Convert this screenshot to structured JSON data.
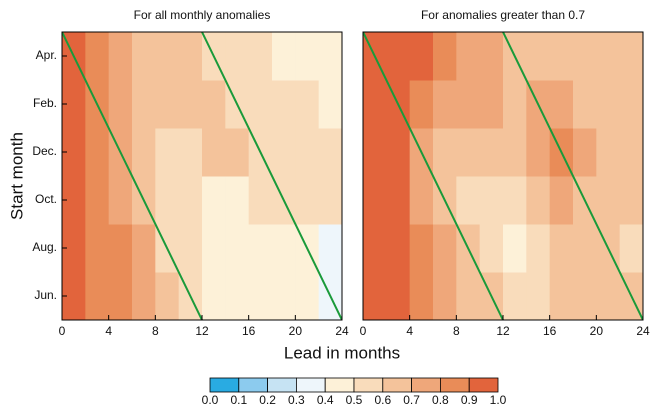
{
  "chart_data": [
    {
      "type": "heatmap",
      "title": "For all monthly anomalies",
      "xlabel": "Lead in months",
      "ylabel": "Start month",
      "x": [
        1,
        3,
        5,
        7,
        9,
        11,
        13,
        15,
        17,
        19,
        21,
        23
      ],
      "y": [
        1,
        3,
        5,
        7,
        9,
        11
      ],
      "values": [
        [
          0.95,
          0.85,
          0.8,
          0.75,
          0.65,
          0.55,
          0.45,
          0.45,
          0.45,
          0.45,
          0.45,
          0.35
        ],
        [
          0.95,
          0.85,
          0.8,
          0.7,
          0.55,
          0.5,
          0.45,
          0.45,
          0.45,
          0.45,
          0.45,
          0.35
        ],
        [
          0.95,
          0.85,
          0.75,
          0.65,
          0.55,
          0.5,
          0.45,
          0.45,
          0.5,
          0.55,
          0.55,
          0.5
        ],
        [
          0.95,
          0.85,
          0.75,
          0.65,
          0.55,
          0.55,
          0.6,
          0.6,
          0.55,
          0.55,
          0.5,
          0.5
        ],
        [
          0.95,
          0.85,
          0.75,
          0.65,
          0.65,
          0.6,
          0.6,
          0.55,
          0.55,
          0.5,
          0.5,
          0.45
        ],
        [
          0.95,
          0.85,
          0.75,
          0.65,
          0.65,
          0.6,
          0.55,
          0.55,
          0.5,
          0.45,
          0.45,
          0.45
        ]
      ],
      "xlim": [
        0,
        24
      ],
      "xticks": [
        0,
        4,
        8,
        12,
        16,
        20,
        24
      ],
      "ylim": [
        0,
        12
      ],
      "yticks": [
        {
          "value": 1,
          "label": "Jun."
        },
        {
          "value": 3,
          "label": "Aug."
        },
        {
          "value": 5,
          "label": "Oct."
        },
        {
          "value": 7,
          "label": "Dec."
        },
        {
          "value": 9,
          "label": "Feb."
        },
        {
          "value": 11,
          "label": "Apr."
        }
      ],
      "lines": [
        {
          "x": [
            0,
            12
          ],
          "y": [
            12,
            0
          ],
          "color": "#1a9a3a"
        },
        {
          "x": [
            12,
            24
          ],
          "y": [
            12,
            0
          ],
          "color": "#1a9a3a"
        }
      ]
    },
    {
      "type": "heatmap",
      "title": "For anomalies greater than 0.7",
      "x": [
        1,
        3,
        5,
        7,
        9,
        11,
        13,
        15,
        17,
        19,
        21,
        23
      ],
      "y": [
        1,
        3,
        5,
        7,
        9,
        11
      ],
      "values": [
        [
          0.95,
          0.95,
          0.85,
          0.75,
          0.65,
          0.6,
          0.55,
          0.55,
          0.6,
          0.6,
          0.65,
          0.6
        ],
        [
          0.95,
          0.95,
          0.8,
          0.7,
          0.6,
          0.5,
          0.45,
          0.55,
          0.6,
          0.65,
          0.6,
          0.55
        ],
        [
          0.95,
          0.9,
          0.75,
          0.65,
          0.55,
          0.5,
          0.55,
          0.6,
          0.7,
          0.65,
          0.6,
          0.6
        ],
        [
          0.95,
          0.9,
          0.75,
          0.65,
          0.6,
          0.6,
          0.65,
          0.75,
          0.85,
          0.7,
          0.65,
          0.6
        ],
        [
          0.95,
          0.9,
          0.8,
          0.75,
          0.75,
          0.7,
          0.65,
          0.75,
          0.7,
          0.65,
          0.65,
          0.6
        ],
        [
          0.95,
          0.95,
          0.9,
          0.85,
          0.75,
          0.7,
          0.65,
          0.65,
          0.65,
          0.6,
          0.65,
          0.6
        ]
      ],
      "xlim": [
        0,
        24
      ],
      "xticks": [
        0,
        4,
        8,
        12,
        16,
        20,
        24
      ],
      "ylim": [
        0,
        12
      ],
      "lines": [
        {
          "x": [
            0,
            12
          ],
          "y": [
            12,
            0
          ],
          "color": "#1a9a3a"
        },
        {
          "x": [
            12,
            24
          ],
          "y": [
            12,
            0
          ],
          "color": "#1a9a3a"
        }
      ]
    },
    {
      "type": "colorbar",
      "levels": [
        {
          "value": 0,
          "label": "0.0"
        },
        {
          "value": 0.1,
          "label": "0.1"
        },
        {
          "value": 0.2,
          "label": "0.2"
        },
        {
          "value": 0.3,
          "label": "0.3"
        },
        {
          "value": 0.4,
          "label": "0.4"
        },
        {
          "value": 0.5,
          "label": "0.5"
        },
        {
          "value": 0.6,
          "label": "0.6"
        },
        {
          "value": 0.7,
          "label": "0.7"
        },
        {
          "value": 0.8,
          "label": "0.8"
        },
        {
          "value": 0.9,
          "label": "0.9"
        },
        {
          "value": 1,
          "label": "1.0"
        }
      ],
      "colors": [
        "#29abe2",
        "#8ccbee",
        "#c6e3f3",
        "#eef6fb",
        "#fdf1d8",
        "#f9dcbb",
        "#f4c39b",
        "#efa77a",
        "#e98c58",
        "#e2643c"
      ]
    }
  ]
}
